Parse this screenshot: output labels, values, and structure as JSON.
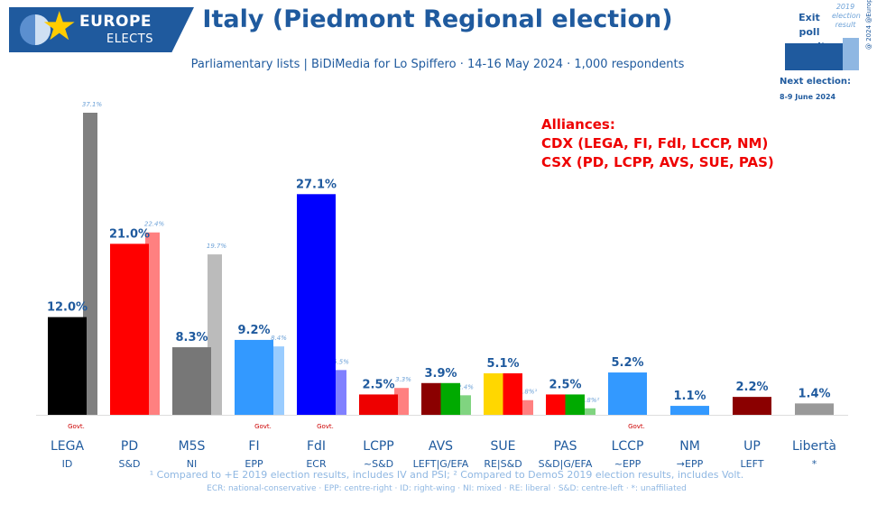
{
  "brand": {
    "line1": "EUROPE",
    "line2": "ELECTS"
  },
  "title": "Italy (Piedmont Regional election)",
  "subtitle": "Parliamentary lists | BiDiMedia for Lo Spiffero · 14-16 May 2024 · 1,000 respondents",
  "legend": {
    "exit_poll": "Exit poll result",
    "previous": "2019 election result",
    "next_election_label": "Next election:",
    "next_election_date": "8-9 June 2024",
    "handle": "@ 2024 @EuropeElects"
  },
  "alliances": {
    "heading": "Alliances:",
    "cdx": "CDX (LEGA, FI, FdI, LCCP, NM)",
    "csx": "CSX (PD, LCPP, AVS, SUE, PAS)"
  },
  "footnotes": {
    "line1": "¹ Compared to +E 2019 election results, includes IV and PSI; ² Compared to DemoS 2019 election results, includes Volt.",
    "line2": "ECR: national-conservative · EPP: centre-right · ID: right-wing · NI: mixed · RE: liberal · S&D: centre-left · *: unaffiliated"
  },
  "chart_data": {
    "type": "bar",
    "title": "Italy (Piedmont Regional election)",
    "ylim": [
      0,
      40
    ],
    "govt_label": "Govt.",
    "categories": [
      {
        "party": "LEGA",
        "group": "ID",
        "value": 12.0,
        "label": "12.0%",
        "prev": 37.1,
        "prev_label": "37.1%",
        "govt": true,
        "colors": [
          "#000000"
        ],
        "prev_color": "#808080"
      },
      {
        "party": "PD",
        "group": "S&D",
        "value": 21.0,
        "label": "21.0%",
        "prev": 22.4,
        "prev_label": "22.4%",
        "govt": false,
        "colors": [
          "#ff0000"
        ],
        "prev_color": "#ff8080"
      },
      {
        "party": "M5S",
        "group": "NI",
        "value": 8.3,
        "label": "8.3%",
        "prev": 19.7,
        "prev_label": "19.7%",
        "govt": false,
        "colors": [
          "#777777"
        ],
        "prev_color": "#bbbbbb"
      },
      {
        "party": "FI",
        "group": "EPP",
        "value": 9.2,
        "label": "9.2%",
        "prev": 8.4,
        "prev_label": "8.4%",
        "govt": true,
        "colors": [
          "#3399ff"
        ],
        "prev_color": "#99ccff"
      },
      {
        "party": "FdI",
        "group": "ECR",
        "value": 27.1,
        "label": "27.1%",
        "prev": 5.5,
        "prev_label": "5.5%",
        "govt": true,
        "colors": [
          "#0000ff"
        ],
        "prev_color": "#8080ff"
      },
      {
        "party": "LCPP",
        "group": "~S&D",
        "value": 2.5,
        "label": "2.5%",
        "prev": 3.3,
        "prev_label": "3.3%",
        "govt": false,
        "colors": [
          "#ee0000"
        ],
        "prev_color": "#ff8080"
      },
      {
        "party": "AVS",
        "group": "LEFT|G/EFA",
        "value": 3.9,
        "label": "3.9%",
        "prev": 2.4,
        "prev_label": "2.4%",
        "govt": false,
        "colors": [
          "#8b0000",
          "#00aa00"
        ],
        "prev_color": "#80d480"
      },
      {
        "party": "SUE",
        "group": "RE|S&D",
        "value": 5.1,
        "label": "5.1%",
        "prev": 1.8,
        "prev_label": "1.8%¹",
        "govt": false,
        "colors": [
          "#ffd700",
          "#ff0000"
        ],
        "prev_color": "#ff8080"
      },
      {
        "party": "PAS",
        "group": "S&D|G/EFA",
        "value": 2.5,
        "label": "2.5%",
        "prev": 0.8,
        "prev_label": "0.8%²",
        "govt": false,
        "colors": [
          "#ff0000",
          "#00aa00"
        ],
        "prev_color": "#80d480"
      },
      {
        "party": "LCCP",
        "group": "~EPP",
        "value": 5.2,
        "label": "5.2%",
        "prev": null,
        "prev_label": "",
        "govt": true,
        "colors": [
          "#3399ff"
        ],
        "prev_color": "#99ccff"
      },
      {
        "party": "NM",
        "group": "→EPP",
        "value": 1.1,
        "label": "1.1%",
        "prev": null,
        "prev_label": "",
        "govt": false,
        "colors": [
          "#3399ff"
        ],
        "prev_color": "#99ccff"
      },
      {
        "party": "UP",
        "group": "LEFT",
        "value": 2.2,
        "label": "2.2%",
        "prev": null,
        "prev_label": "",
        "govt": false,
        "colors": [
          "#8b0000"
        ],
        "prev_color": "#c08080"
      },
      {
        "party": "Libertà",
        "group": "*",
        "value": 1.4,
        "label": "1.4%",
        "prev": null,
        "prev_label": "",
        "govt": false,
        "colors": [
          "#999999"
        ],
        "prev_color": "#cccccc"
      }
    ]
  }
}
